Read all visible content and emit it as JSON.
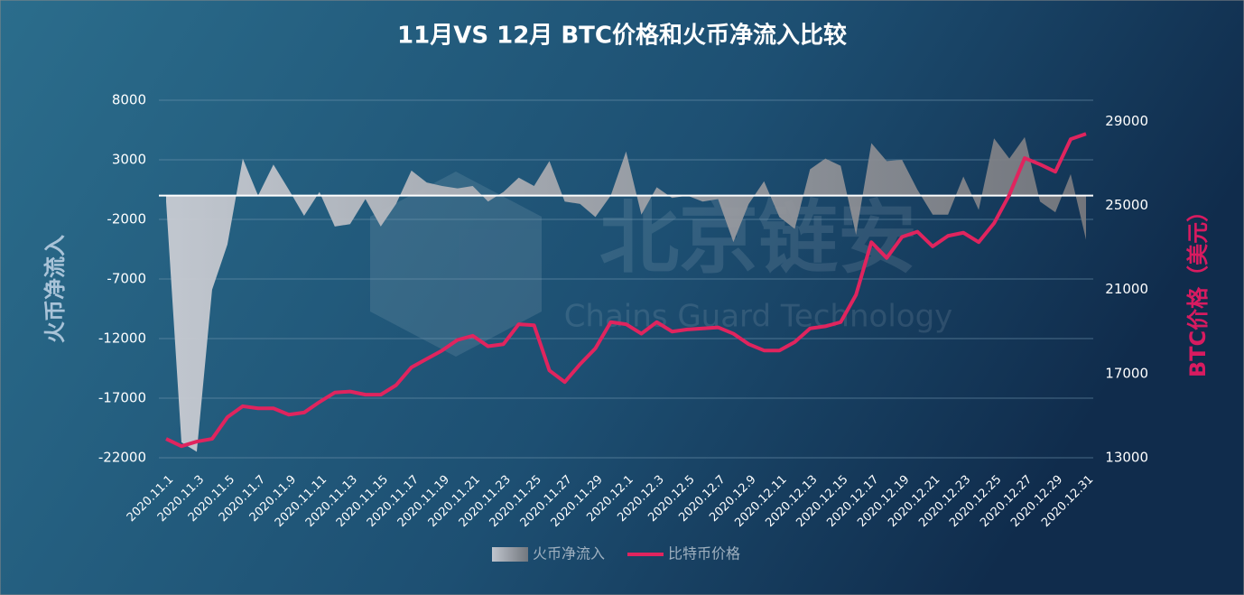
{
  "chart_data": {
    "type": "combo",
    "title": "11月VS 12月 BTC价格和火币净流入比较",
    "y_label": "火币净流入",
    "y2_label": "BTC价格（美元）",
    "watermark": [
      "北京链安",
      "Chains Guard Technology"
    ],
    "categories": [
      "2020.11.1",
      null,
      "2020.11.3",
      null,
      "2020.11.5",
      null,
      "2020.11.7",
      null,
      "2020.11.9",
      null,
      "2020.11.11",
      null,
      "2020.11.13",
      null,
      "2020.11.15",
      null,
      "2020.11.17",
      null,
      "2020.11.19",
      null,
      "2020.11.21",
      null,
      "2020.11.23",
      null,
      "2020.11.25",
      null,
      "2020.11.27",
      null,
      "2020.11.29",
      null,
      "2020.12.1",
      null,
      "2020.12.3",
      null,
      "2020.12.5",
      null,
      "2020.12.7",
      null,
      "2020.12.9",
      null,
      "2020.12.11",
      null,
      "2020.12.13",
      null,
      "2020.12.15",
      null,
      "2020.12.17",
      null,
      "2020.12.19",
      null,
      "2020.12.21",
      null,
      "2020.12.23",
      null,
      "2020.12.25",
      null,
      "2020.12.27",
      null,
      "2020.12.29",
      null,
      "2020.12.31"
    ],
    "series": [
      {
        "name": "火币净流入",
        "type": "area",
        "color": "#c9ccd3",
        "values": [
          -500,
          -20700,
          -21500,
          -7900,
          -4100,
          3100,
          0,
          2600,
          500,
          -1700,
          300,
          -2600,
          -2400,
          -300,
          -2600,
          -700,
          2100,
          1100,
          800,
          600,
          800,
          -500,
          300,
          1500,
          800,
          2900,
          -500,
          -700,
          -1800,
          0,
          3700,
          -1600,
          700,
          -200,
          0,
          -500,
          -300,
          -3900,
          -700,
          1200,
          -1800,
          -2800,
          2200,
          3100,
          2500,
          -3300,
          4400,
          2900,
          3000,
          500,
          -1600,
          -1600,
          1600,
          -1200,
          4800,
          3100,
          4900,
          -500,
          -1400,
          1800,
          -3700
        ]
      },
      {
        "name": "比特币价格",
        "type": "line",
        "axis": "y2",
        "color": "#e0245e",
        "values": [
          13900,
          13550,
          13770,
          13900,
          14930,
          15450,
          15350,
          15350,
          15050,
          15150,
          15650,
          16100,
          16150,
          16000,
          16000,
          16450,
          17300,
          17700,
          18100,
          18600,
          18800,
          18300,
          18400,
          19350,
          19300,
          17150,
          16600,
          17450,
          18200,
          19450,
          19350,
          18900,
          19450,
          19000,
          19100,
          19150,
          19200,
          18900,
          18400,
          18100,
          18100,
          18500,
          19150,
          19250,
          19450,
          20750,
          23250,
          22500,
          23500,
          23750,
          23050,
          23550,
          23700,
          23250,
          24150,
          25500,
          27250,
          26950,
          26600,
          28150,
          28400
        ]
      }
    ],
    "ylim": [
      -22000,
      8000
    ],
    "yticks": [
      -22000,
      -17000,
      -12000,
      -7000,
      -2000,
      3000,
      8000
    ],
    "y2lim": [
      13000,
      30000
    ],
    "y2ticks": [
      13000,
      17000,
      21000,
      25000,
      29000
    ],
    "grid": true,
    "legend": "bottom"
  }
}
